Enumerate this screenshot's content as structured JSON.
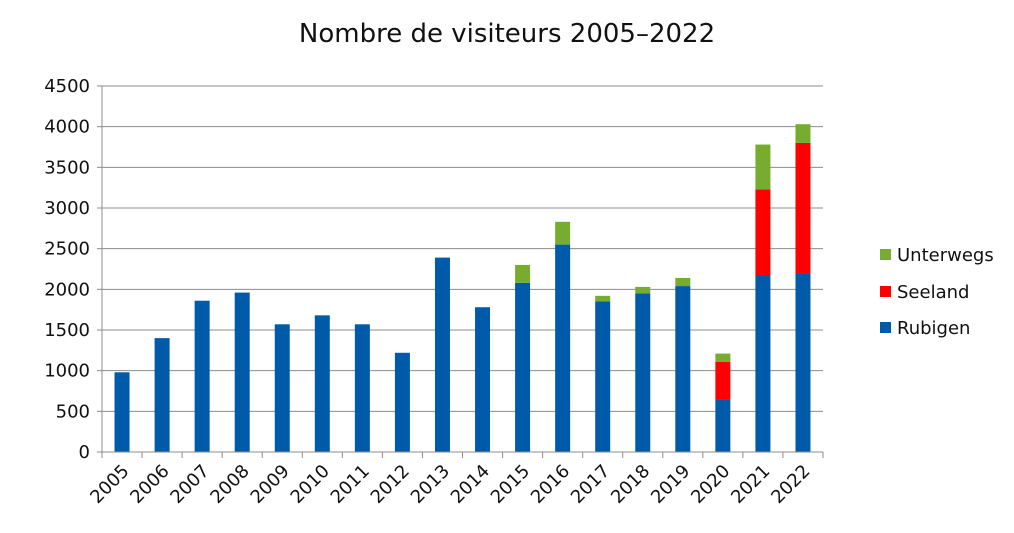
{
  "chart_data": {
    "type": "bar",
    "stacked": true,
    "title": "Nombre de visiteurs 2005–2022",
    "xlabel": "",
    "ylabel": "",
    "ylim": [
      0,
      4500
    ],
    "yticks": [
      0,
      500,
      1000,
      1500,
      2000,
      2500,
      3000,
      3500,
      4000,
      4500
    ],
    "grid": true,
    "legend_position": "right",
    "categories": [
      "2005",
      "2006",
      "2007",
      "2008",
      "2009",
      "2010",
      "2011",
      "2012",
      "2013",
      "2014",
      "2015",
      "2016",
      "2017",
      "2018",
      "2019",
      "2020",
      "2021",
      "2022"
    ],
    "series": [
      {
        "name": "Rubigen",
        "color": "#005aaa",
        "values": [
          980,
          1400,
          1860,
          1960,
          1570,
          1680,
          1570,
          1220,
          2390,
          1780,
          2080,
          2550,
          1850,
          1950,
          2040,
          640,
          2170,
          2200
        ]
      },
      {
        "name": "Seeland",
        "color": "#ff0000",
        "values": [
          0,
          0,
          0,
          0,
          0,
          0,
          0,
          0,
          0,
          0,
          0,
          0,
          0,
          0,
          0,
          470,
          1060,
          1600
        ]
      },
      {
        "name": "Unterwegs",
        "color": "#77ac2f",
        "values": [
          0,
          0,
          0,
          0,
          0,
          0,
          0,
          0,
          0,
          0,
          220,
          280,
          70,
          80,
          100,
          100,
          550,
          230
        ]
      }
    ],
    "legend_order": [
      "Unterwegs",
      "Seeland",
      "Rubigen"
    ]
  }
}
